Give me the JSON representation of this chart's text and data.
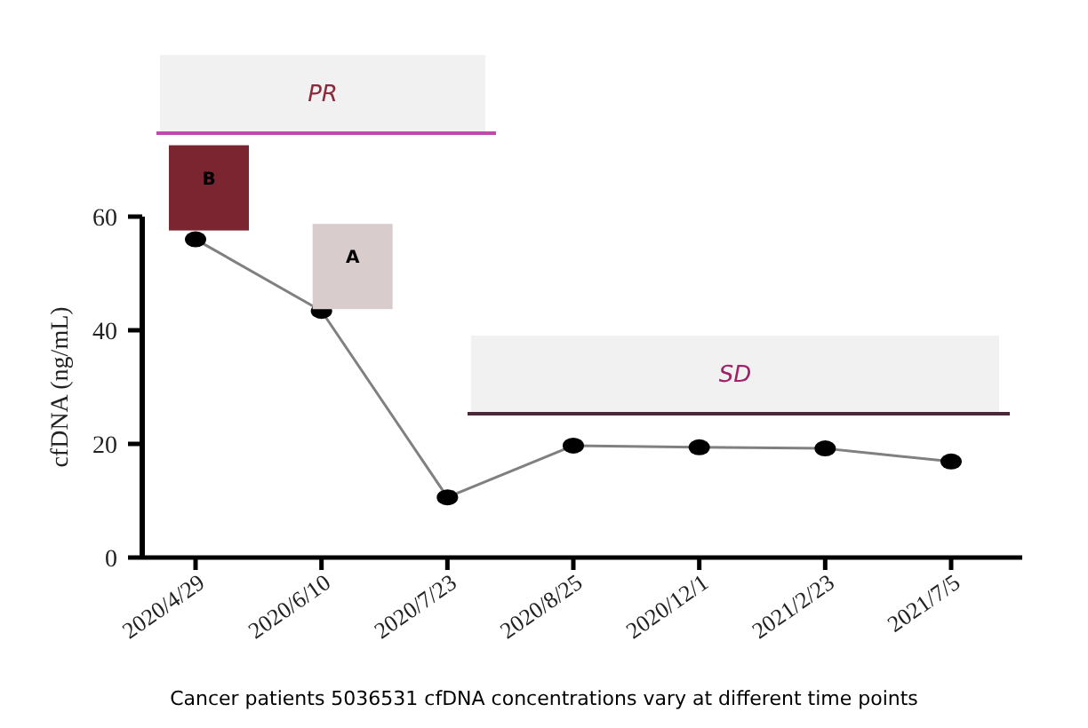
{
  "chart_data": {
    "type": "line",
    "ylabel": "cfDNA (ng/mL)",
    "categories": [
      "2020/4/29",
      "2020/6/10",
      "2020/7/23",
      "2020/8/25",
      "2020/12/1",
      "2021/2/23",
      "2021/7/5"
    ],
    "series": [
      {
        "color": "#808080",
        "values": [
          56,
          43.4,
          10.6,
          19.7,
          19.4,
          19.2,
          16.9
        ]
      }
    ],
    "ylim": [
      0,
      60
    ],
    "yticks": [
      0,
      20,
      40,
      60
    ],
    "grid": false,
    "marker": "circle",
    "line_style": "solid",
    "annotations": [
      {
        "text": "B",
        "x": "2020/4/29",
        "y": 56
      },
      {
        "text": "A",
        "x": "2020/6/10",
        "y": 43.4
      },
      "PR",
      "SD",
      "Cancer patients 5036531 cfDNA concentrations vary at different time points"
    ]
  }
}
